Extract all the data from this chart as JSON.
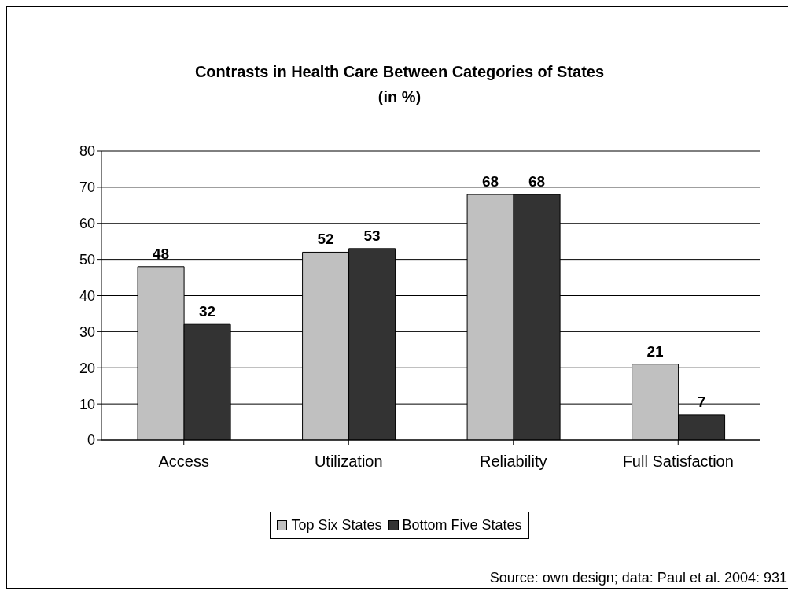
{
  "chart_data": {
    "type": "bar",
    "title": "Contrasts in Health Care Between Categories of States\n(in %)",
    "categories": [
      "Access",
      "Utilization",
      "Reliability",
      "Full Satisfaction"
    ],
    "series": [
      {
        "name": "Top Six States",
        "color": "#c0c0c0",
        "values": [
          48,
          52,
          68,
          21
        ]
      },
      {
        "name": "Bottom Five States",
        "color": "#333333",
        "values": [
          32,
          53,
          68,
          7
        ]
      }
    ],
    "ylim": [
      0,
      80
    ],
    "yticks": [
      0,
      10,
      20,
      30,
      40,
      50,
      60,
      70,
      80
    ],
    "grid": "y",
    "legend": "bottom",
    "data_labels": true,
    "annotations": [
      "Source: own design; data: Paul et al. 2004: 931"
    ]
  }
}
